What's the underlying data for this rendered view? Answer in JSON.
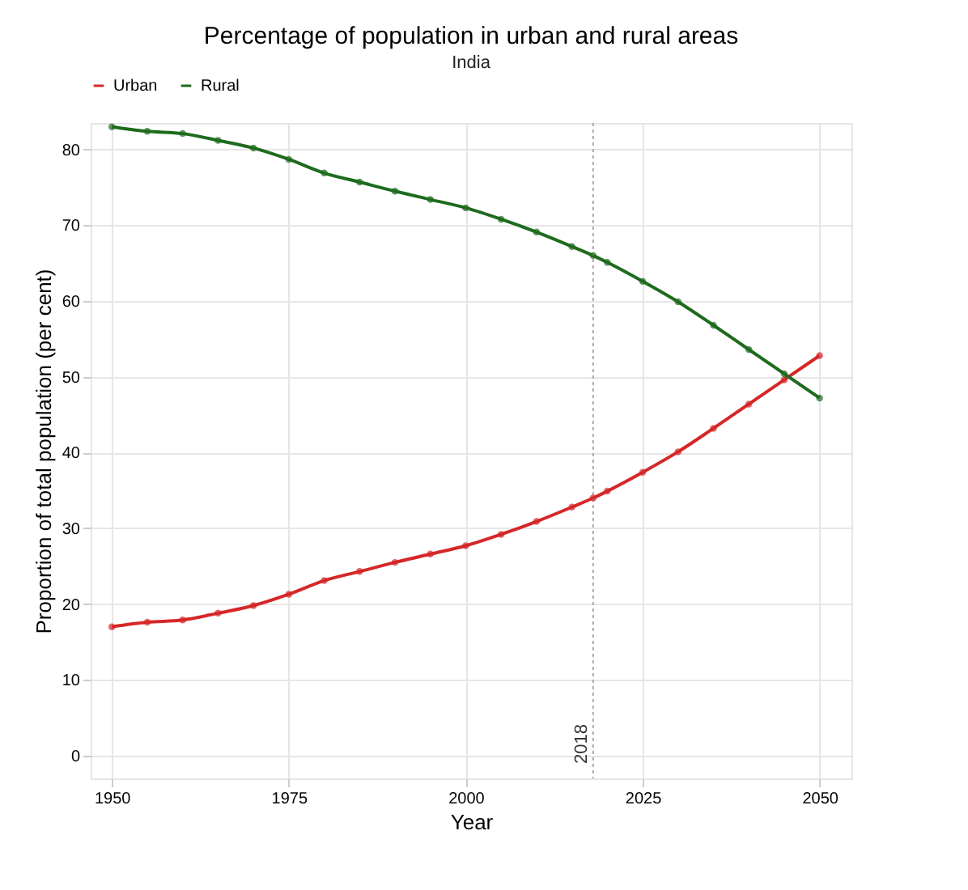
{
  "chart_data": {
    "type": "line",
    "title": "Percentage of population in urban and rural areas",
    "subtitle": "India",
    "xlabel": "Year",
    "ylabel": "Proportion of total population (per cent)",
    "x": [
      1950,
      1955,
      1960,
      1965,
      1970,
      1975,
      1980,
      1985,
      1990,
      1995,
      2000,
      2005,
      2010,
      2015,
      2018,
      2020,
      2025,
      2030,
      2035,
      2040,
      2045,
      2050
    ],
    "series": [
      {
        "name": "Urban",
        "color": "#d62728",
        "values": [
          17.0,
          17.6,
          17.9,
          18.8,
          19.8,
          21.3,
          23.1,
          24.3,
          25.5,
          26.6,
          27.7,
          29.2,
          30.9,
          32.8,
          34.0,
          34.9,
          37.4,
          40.1,
          43.2,
          46.4,
          49.6,
          52.8
        ]
      },
      {
        "name": "Rural",
        "color": "#1e6b1e",
        "values": [
          83.0,
          82.4,
          82.1,
          81.2,
          80.2,
          78.7,
          76.9,
          75.7,
          74.5,
          73.4,
          72.3,
          70.8,
          69.1,
          67.2,
          66.0,
          65.1,
          62.6,
          59.9,
          56.8,
          53.6,
          50.4,
          47.2
        ]
      }
    ],
    "xlim": [
      1947,
      2054.5
    ],
    "xticks": [
      1950,
      1975,
      2000,
      2025,
      2050
    ],
    "ylim": [
      -3,
      83.5
    ],
    "yticks": [
      0,
      10,
      20,
      30,
      40,
      50,
      60,
      70,
      80
    ],
    "ref_lines": [
      {
        "axis": "x",
        "value": 2018,
        "label": "2018",
        "color": "#aaaaaa",
        "line_style": "dotted"
      }
    ],
    "grid": true,
    "legend": "top",
    "marker": "circle",
    "line_style": "solid"
  }
}
